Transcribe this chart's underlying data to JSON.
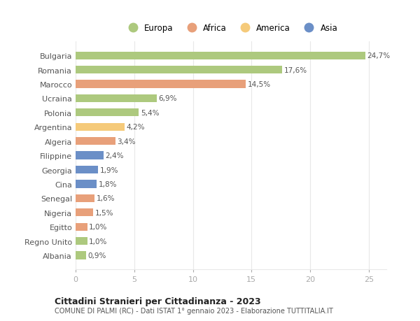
{
  "categories": [
    "Albania",
    "Regno Unito",
    "Egitto",
    "Nigeria",
    "Senegal",
    "Cina",
    "Georgia",
    "Filippine",
    "Algeria",
    "Argentina",
    "Polonia",
    "Ucraina",
    "Marocco",
    "Romania",
    "Bulgaria"
  ],
  "values": [
    0.9,
    1.0,
    1.0,
    1.5,
    1.6,
    1.8,
    1.9,
    2.4,
    3.4,
    4.2,
    5.4,
    6.9,
    14.5,
    17.6,
    24.7
  ],
  "labels": [
    "0,9%",
    "1,0%",
    "1,0%",
    "1,5%",
    "1,6%",
    "1,8%",
    "1,9%",
    "2,4%",
    "3,4%",
    "4,2%",
    "5,4%",
    "6,9%",
    "14,5%",
    "17,6%",
    "24,7%"
  ],
  "colors": [
    "#adc97e",
    "#adc97e",
    "#e8a07a",
    "#e8a07a",
    "#e8a07a",
    "#6b8fc7",
    "#6b8fc7",
    "#6b8fc7",
    "#e8a07a",
    "#f5ca7a",
    "#adc97e",
    "#adc97e",
    "#e8a07a",
    "#adc97e",
    "#adc97e"
  ],
  "legend": [
    {
      "label": "Europa",
      "color": "#adc97e"
    },
    {
      "label": "Africa",
      "color": "#e8a07a"
    },
    {
      "label": "America",
      "color": "#f5ca7a"
    },
    {
      "label": "Asia",
      "color": "#6b8fc7"
    }
  ],
  "title": "Cittadini Stranieri per Cittadinanza - 2023",
  "subtitle": "COMUNE DI PALMI (RC) - Dati ISTAT 1° gennaio 2023 - Elaborazione TUTTITALIA.IT",
  "xlim": [
    0,
    26.5
  ],
  "xticks": [
    0,
    5,
    10,
    15,
    20,
    25
  ],
  "background_color": "#ffffff",
  "grid_color": "#e8e8e8"
}
